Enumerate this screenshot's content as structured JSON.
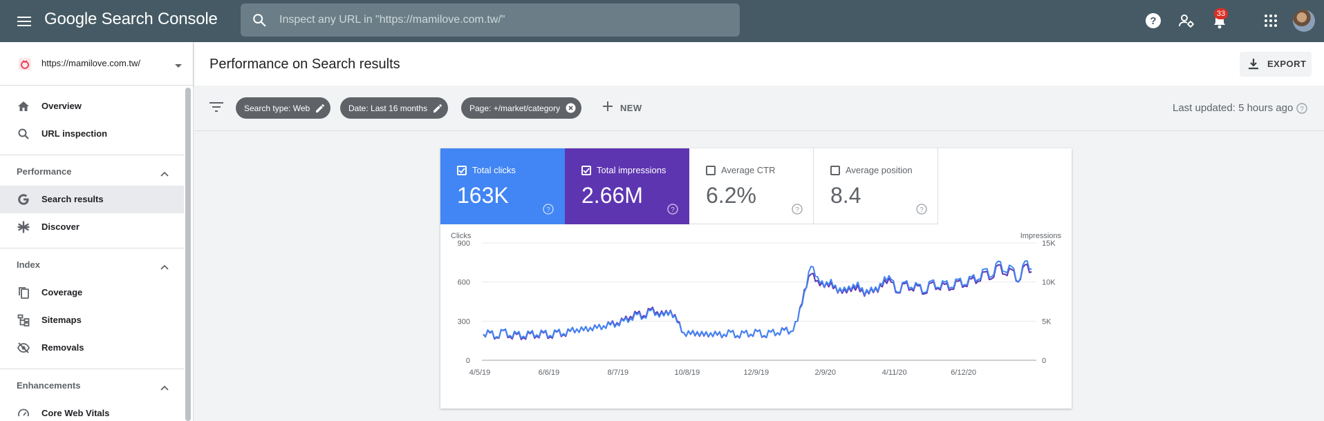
{
  "app": {
    "brand_google": "Google",
    "brand_product": "Search Console",
    "search_placeholder": "Inspect any URL in \"https://mamilove.com.tw/\"",
    "notification_count": "33",
    "icons": [
      "menu-icon",
      "search-icon",
      "help-icon",
      "manage-accounts-icon",
      "bell-icon",
      "apps-grid-icon"
    ]
  },
  "sidebar": {
    "property": "https://mamilove.com.tw/",
    "items_top": [
      {
        "label": "Overview",
        "icon": "home-icon"
      },
      {
        "label": "URL inspection",
        "icon": "search-icon"
      }
    ],
    "sections": [
      {
        "label": "Performance",
        "items": [
          {
            "label": "Search results",
            "icon": "google-g-icon",
            "active": true
          },
          {
            "label": "Discover",
            "icon": "asterisk-icon"
          }
        ]
      },
      {
        "label": "Index",
        "items": [
          {
            "label": "Coverage",
            "icon": "file-copy-icon"
          },
          {
            "label": "Sitemaps",
            "icon": "sitemap-icon"
          },
          {
            "label": "Removals",
            "icon": "visibility-off-icon"
          }
        ]
      },
      {
        "label": "Enhancements",
        "items": [
          {
            "label": "Core Web Vitals",
            "icon": "speed-gauge-icon"
          }
        ]
      }
    ]
  },
  "header": {
    "title": "Performance on Search results",
    "export_label": "EXPORT"
  },
  "filters": {
    "chips": [
      {
        "label": "Search type: Web",
        "action": "edit"
      },
      {
        "label": "Date: Last 16 months",
        "action": "edit"
      },
      {
        "label": "Page: +/market/category",
        "action": "remove"
      }
    ],
    "new_label": "NEW",
    "last_updated": "Last updated: 5 hours ago"
  },
  "metrics": [
    {
      "label": "Total clicks",
      "value": "163K",
      "checked": true,
      "color": "#4285f4"
    },
    {
      "label": "Total impressions",
      "value": "2.66M",
      "checked": true,
      "color": "#5e35b1"
    },
    {
      "label": "Average CTR",
      "value": "6.2%",
      "checked": false,
      "color": "#ffffff"
    },
    {
      "label": "Average position",
      "value": "8.4",
      "checked": false,
      "color": "#ffffff"
    }
  ],
  "chart_data": {
    "type": "line",
    "left_axis_label": "Clicks",
    "right_axis_label": "Impressions",
    "left_ticks": [
      "900",
      "600",
      "300",
      "0"
    ],
    "right_ticks": [
      "15K",
      "10K",
      "5K",
      "0"
    ],
    "ylim_left": [
      0,
      900
    ],
    "ylim_right": [
      0,
      15000
    ],
    "x_tick_labels": [
      "4/5/19",
      "6/6/19",
      "8/7/19",
      "10/8/19",
      "12/9/19",
      "2/9/20",
      "4/11/20",
      "6/12/20"
    ],
    "x_tick_days": [
      0,
      62,
      124,
      186,
      248,
      310,
      372,
      434
    ],
    "total_days": 495,
    "series": [
      {
        "name": "Clicks",
        "axis": "left",
        "color": "#4285f4",
        "x_days": [
          0,
          6,
          12,
          18,
          24,
          30,
          36,
          42,
          48,
          54,
          60,
          66,
          72,
          78,
          84,
          90,
          96,
          102,
          108,
          114,
          120,
          126,
          132,
          138,
          144,
          150,
          156,
          162,
          168,
          174,
          180,
          186,
          192,
          198,
          204,
          210,
          216,
          222,
          228,
          234,
          240,
          246,
          252,
          258,
          264,
          270,
          276,
          282,
          288,
          294,
          300,
          306,
          312,
          318,
          324,
          330,
          336,
          342,
          348,
          354,
          360,
          366,
          372,
          378,
          384,
          390,
          396,
          402,
          408,
          414,
          420,
          426,
          432,
          438,
          444,
          450,
          456,
          462,
          468,
          474,
          480,
          486,
          492
        ],
        "values": [
          200,
          215,
          180,
          230,
          190,
          205,
          185,
          210,
          195,
          215,
          190,
          220,
          205,
          225,
          240,
          230,
          250,
          245,
          265,
          270,
          280,
          300,
          320,
          350,
          330,
          380,
          360,
          340,
          380,
          290,
          210,
          200,
          220,
          190,
          210,
          195,
          200,
          215,
          190,
          210,
          200,
          220,
          190,
          215,
          210,
          230,
          220,
          300,
          520,
          720,
          640,
          560,
          620,
          520,
          560,
          540,
          600,
          500,
          560,
          530,
          640,
          620,
          520,
          600,
          560,
          580,
          520,
          610,
          560,
          600,
          560,
          620,
          580,
          640,
          620,
          700,
          640,
          760,
          680,
          720,
          600,
          760,
          700
        ]
      },
      {
        "name": "Impressions",
        "axis": "right",
        "color": "#5e35b1",
        "x_days": [
          0,
          6,
          12,
          18,
          24,
          30,
          36,
          42,
          48,
          54,
          60,
          66,
          72,
          78,
          84,
          90,
          96,
          102,
          108,
          114,
          120,
          126,
          132,
          138,
          144,
          150,
          156,
          162,
          168,
          174,
          180,
          186,
          192,
          198,
          204,
          210,
          216,
          222,
          228,
          234,
          240,
          246,
          252,
          258,
          264,
          270,
          276,
          282,
          288,
          294,
          300,
          306,
          312,
          318,
          324,
          330,
          336,
          342,
          348,
          354,
          360,
          366,
          372,
          378,
          384,
          390,
          396,
          402,
          408,
          414,
          420,
          426,
          432,
          438,
          444,
          450,
          456,
          462,
          468,
          474,
          480,
          486,
          492
        ],
        "values": [
          3300,
          3500,
          2900,
          3800,
          3000,
          3300,
          2900,
          3400,
          3100,
          3500,
          3000,
          3600,
          3300,
          3700,
          4000,
          3800,
          4200,
          4100,
          4400,
          4600,
          4800,
          5100,
          5600,
          6000,
          5700,
          6500,
          6200,
          5800,
          6400,
          5000,
          3500,
          3300,
          3600,
          3100,
          3500,
          3200,
          3300,
          3600,
          3100,
          3500,
          3300,
          3700,
          3100,
          3600,
          3500,
          3900,
          3700,
          5000,
          9000,
          11000,
          10200,
          9300,
          10000,
          8600,
          9100,
          8800,
          9600,
          8200,
          9200,
          8700,
          10300,
          10000,
          8600,
          9800,
          9100,
          9500,
          8500,
          9900,
          9200,
          9700,
          9100,
          10100,
          9500,
          10400,
          10100,
          11300,
          10400,
          12200,
          11000,
          11600,
          10000,
          12200,
          11300
        ]
      }
    ]
  }
}
